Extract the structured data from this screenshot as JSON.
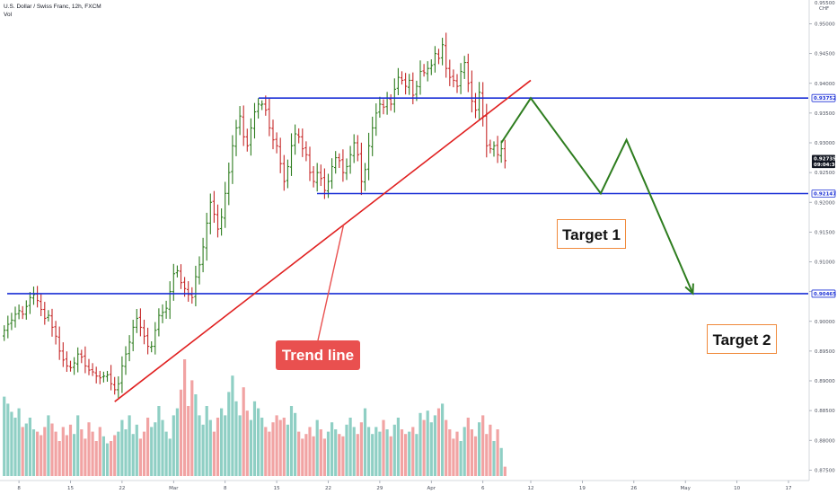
{
  "header": {
    "symbol_title": "U.S. Dollar / Swiss Franc, 12h, FXCM",
    "volume_label": "Vol"
  },
  "colors": {
    "bull": "#2e7d1f",
    "bear": "#c62828",
    "vol_bull": "#8fcfc4",
    "vol_bear": "#f1a3a3",
    "level": "#1a2fd6",
    "trend": "#e02020",
    "projection": "#2e7d1f",
    "target_border": "#f08a3c",
    "trend_label_bg": "#e9504f"
  },
  "annotations": {
    "trend_line": "Trend line",
    "target_1": "Target 1",
    "target_2": "Target 2"
  },
  "chart_data": {
    "type": "candlestick",
    "title": "U.S. Dollar / Swiss Franc, 12h, FXCM",
    "ylim": [
      0.874,
      0.954
    ],
    "y_ticks": [
      "0.95000",
      "0.94500",
      "0.94000",
      "0.93500",
      "0.93000",
      "0.92500",
      "0.92000",
      "0.91500",
      "0.91000",
      "0.90500",
      "0.90000",
      "0.89500",
      "0.89000",
      "0.88500",
      "0.88000",
      "0.87500"
    ],
    "y_tick_values": [
      0.95,
      0.945,
      0.94,
      0.935,
      0.93,
      0.925,
      0.92,
      0.915,
      0.91,
      0.905,
      0.9,
      0.895,
      0.89,
      0.885,
      0.88,
      0.875
    ],
    "x_tick_labels": [
      "8",
      "15",
      "22",
      "Mar",
      "8",
      "15",
      "22",
      "29",
      "Apr",
      "6",
      "12",
      "19",
      "26",
      "May",
      "10",
      "17"
    ],
    "x_tick_index": [
      4,
      18,
      32,
      46,
      60,
      74,
      88,
      102,
      116,
      130,
      143,
      157,
      171,
      185,
      199,
      213
    ],
    "price_labels": [
      {
        "text": "0.93752",
        "value": 0.93752,
        "style": "level"
      },
      {
        "text": "0.92735",
        "value": 0.92735,
        "style": "current"
      },
      {
        "text": "09:04:30",
        "value": 0.92635,
        "style": "current"
      },
      {
        "text": "0.92147",
        "value": 0.92147,
        "style": "level"
      },
      {
        "text": "0.90465",
        "value": 0.90465,
        "style": "level"
      }
    ],
    "axis_unit": "CHF",
    "axis_top_label": "0.95500",
    "levels": [
      0.93752,
      0.92147,
      0.90465
    ],
    "candles_close": [
      0.8985,
      0.8995,
      0.9002,
      0.9012,
      0.9018,
      0.9012,
      0.9025,
      0.904,
      0.9045,
      0.9035,
      0.902,
      0.9005,
      0.901,
      0.899,
      0.8975,
      0.895,
      0.8935,
      0.8925,
      0.8922,
      0.893,
      0.8945,
      0.894,
      0.8925,
      0.8918,
      0.8915,
      0.8908,
      0.8905,
      0.8908,
      0.891,
      0.8895,
      0.8885,
      0.8895,
      0.8925,
      0.8945,
      0.8965,
      0.899,
      0.9005,
      0.899,
      0.8975,
      0.8958,
      0.8958,
      0.8985,
      0.901,
      0.9015,
      0.9022,
      0.905,
      0.908,
      0.9085,
      0.9065,
      0.9055,
      0.9045,
      0.904,
      0.9075,
      0.9095,
      0.9125,
      0.9165,
      0.92,
      0.918,
      0.9155,
      0.9175,
      0.9215,
      0.925,
      0.9295,
      0.9325,
      0.9345,
      0.931,
      0.9295,
      0.9325,
      0.9352,
      0.9365,
      0.9365,
      0.9355,
      0.9325,
      0.9305,
      0.9295,
      0.9265,
      0.9235,
      0.926,
      0.9295,
      0.9315,
      0.931,
      0.929,
      0.928,
      0.925,
      0.9235,
      0.925,
      0.924,
      0.922,
      0.9235,
      0.926,
      0.9275,
      0.927,
      0.925,
      0.926,
      0.928,
      0.93,
      0.928,
      0.9235,
      0.9255,
      0.9295,
      0.9325,
      0.935,
      0.9365,
      0.936,
      0.9375,
      0.9365,
      0.939,
      0.941,
      0.9405,
      0.9395,
      0.9405,
      0.938,
      0.9395,
      0.942,
      0.9418,
      0.9425,
      0.943,
      0.945,
      0.9442,
      0.9465,
      0.9425,
      0.941,
      0.9405,
      0.9395,
      0.942,
      0.9435,
      0.94,
      0.937,
      0.9355,
      0.9385,
      0.9345,
      0.9295,
      0.929,
      0.9295,
      0.928,
      0.929,
      0.927
    ],
    "volume": [
      0.68,
      0.62,
      0.55,
      0.5,
      0.58,
      0.42,
      0.45,
      0.5,
      0.4,
      0.38,
      0.35,
      0.42,
      0.52,
      0.45,
      0.38,
      0.3,
      0.42,
      0.35,
      0.44,
      0.36,
      0.52,
      0.4,
      0.32,
      0.46,
      0.38,
      0.3,
      0.42,
      0.34,
      0.28,
      0.3,
      0.35,
      0.38,
      0.48,
      0.4,
      0.52,
      0.36,
      0.44,
      0.32,
      0.38,
      0.5,
      0.42,
      0.46,
      0.6,
      0.48,
      0.38,
      0.32,
      0.52,
      0.58,
      0.74,
      1.0,
      0.6,
      0.82,
      0.7,
      0.52,
      0.44,
      0.6,
      0.48,
      0.38,
      0.5,
      0.58,
      0.52,
      0.72,
      0.86,
      0.64,
      0.52,
      0.76,
      0.56,
      0.48,
      0.64,
      0.58,
      0.5,
      0.42,
      0.38,
      0.46,
      0.52,
      0.48,
      0.5,
      0.44,
      0.6,
      0.54,
      0.38,
      0.32,
      0.36,
      0.42,
      0.34,
      0.48,
      0.4,
      0.32,
      0.38,
      0.46,
      0.4,
      0.36,
      0.34,
      0.44,
      0.5,
      0.42,
      0.36,
      0.46,
      0.58,
      0.42,
      0.36,
      0.42,
      0.38,
      0.48,
      0.4,
      0.34,
      0.44,
      0.5,
      0.4,
      0.36,
      0.38,
      0.42,
      0.36,
      0.54,
      0.48,
      0.56,
      0.46,
      0.52,
      0.58,
      0.62,
      0.48,
      0.4,
      0.32,
      0.38,
      0.3,
      0.42,
      0.5,
      0.4,
      0.34,
      0.46,
      0.52,
      0.36,
      0.44,
      0.3,
      0.4,
      0.24,
      0.08
    ],
    "trend_line": {
      "from": [
        30,
        0.8865
      ],
      "to": [
        143,
        0.9405
      ]
    },
    "projection_path": [
      [
        135,
        0.93
      ],
      [
        143,
        0.9375
      ],
      [
        162,
        0.9215
      ],
      [
        169,
        0.9305
      ],
      [
        187,
        0.9047
      ]
    ],
    "current_price": 0.92735
  }
}
